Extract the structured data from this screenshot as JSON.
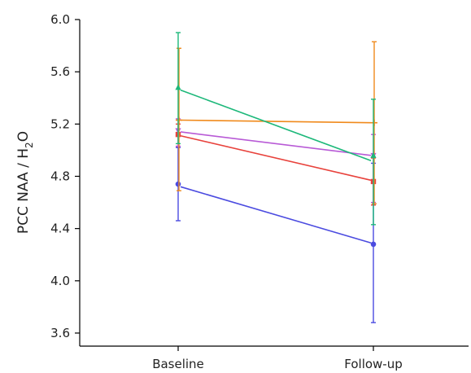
{
  "chart_data": {
    "type": "line",
    "title": "",
    "xlabel": "",
    "ylabel": "PCC NAA / H",
    "ylabel_subscript": "2",
    "ylabel_suffix": "O",
    "categories": [
      "Baseline",
      "Follow-up"
    ],
    "ylim": [
      3.5,
      6.0
    ],
    "yticks": [
      "3.6",
      "4.0",
      "4.4",
      "4.8",
      "5.2",
      "5.6",
      "6.0"
    ],
    "grid": false,
    "legend": "none",
    "series": [
      {
        "color": "#4b4be0",
        "marker": "circle",
        "means": [
          4.74,
          4.28
        ],
        "err_low": [
          4.46,
          3.68
        ],
        "err_high": [
          5.02,
          4.9
        ],
        "trend": [
          4.72,
          4.29
        ]
      },
      {
        "color": "#e8423c",
        "marker": "square",
        "means": [
          5.12,
          4.76
        ],
        "err_low": [
          5.03,
          4.58
        ],
        "err_high": [
          5.2,
          4.94
        ],
        "trend": [
          5.11,
          4.77
        ]
      },
      {
        "color": "#b85ad6",
        "marker": "triangle-down",
        "means": [
          5.15,
          4.96
        ],
        "err_low": [
          5.03,
          4.6
        ],
        "err_high": [
          5.24,
          5.12
        ],
        "trend": [
          5.14,
          4.96
        ]
      },
      {
        "color": "#f08a1c",
        "marker": "plus",
        "means": [
          5.23,
          5.21
        ],
        "err_low": [
          4.69,
          4.59
        ],
        "err_high": [
          5.78,
          5.83
        ],
        "trend": [
          5.23,
          5.21
        ]
      },
      {
        "color": "#1db87a",
        "marker": "triangle-up",
        "means": [
          5.48,
          4.96
        ],
        "err_low": [
          5.05,
          4.43
        ],
        "err_high": [
          5.9,
          5.39
        ],
        "trend": [
          5.46,
          4.92
        ]
      }
    ]
  }
}
